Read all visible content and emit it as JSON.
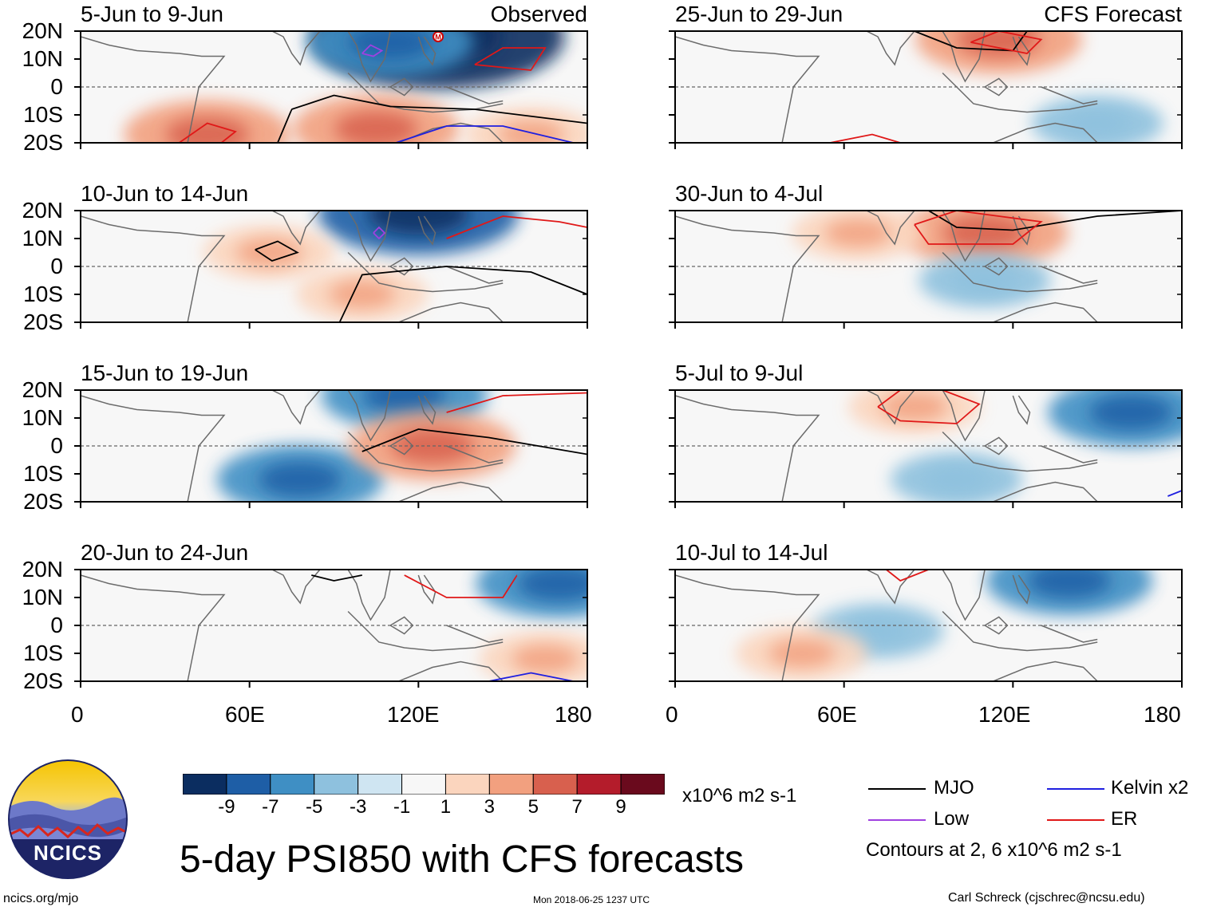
{
  "title": "5-day PSI850 with CFS forecasts",
  "colors": {
    "MJO": "#000000",
    "Kelvin": "#1f1fe0",
    "Low": "#a040e0",
    "ER": "#e01818",
    "palette": [
      "#0b2d60",
      "#1e5ea6",
      "#3f8fc4",
      "#8ec1de",
      "#cfe5f2",
      "#f7f7f7",
      "#fbd5be",
      "#f2a07f",
      "#d8604e",
      "#b41c2b",
      "#6a0a1d"
    ]
  },
  "chart_data": [
    {
      "type": "heatmap",
      "panel": "Observed",
      "period": "5-Jun to 9-Jun",
      "label": "Observed",
      "x_range": [
        0,
        180
      ],
      "y_range": [
        -20,
        20
      ],
      "features": [
        {
          "kind": "blob",
          "sign": "neg",
          "lon": 127,
          "lat": 18,
          "value": -10
        },
        {
          "kind": "blob",
          "sign": "neg",
          "lon": 110,
          "lat": 16,
          "value": -5
        },
        {
          "kind": "blob",
          "sign": "pos",
          "lon": 105,
          "lat": -15,
          "value": 5
        },
        {
          "kind": "blob",
          "sign": "pos",
          "lon": 45,
          "lat": -17,
          "value": 5
        },
        {
          "kind": "blob",
          "sign": "pos",
          "lon": 160,
          "lat": -17,
          "value": 3
        }
      ],
      "contours": [
        {
          "wave": "MJO",
          "lon": [
            70,
            75,
            90,
            110,
            140,
            180
          ],
          "lat": [
            -20,
            -8,
            -3,
            -7,
            -8,
            -13
          ]
        },
        {
          "wave": "ER",
          "lon": [
            140,
            150,
            165,
            160,
            140
          ],
          "lat": [
            8,
            14,
            14,
            6,
            8
          ]
        },
        {
          "wave": "Kelvin",
          "lon": [
            112,
            130,
            150,
            175
          ],
          "lat": [
            -20,
            -14,
            -14,
            -20
          ]
        },
        {
          "wave": "Low",
          "lon": [
            100,
            103,
            107,
            104,
            100
          ],
          "lat": [
            12,
            15,
            13,
            11,
            12
          ]
        },
        {
          "wave": "ER",
          "lon": [
            35,
            45,
            55,
            50,
            35
          ],
          "lat": [
            -20,
            -13,
            -16,
            -20,
            -20
          ]
        }
      ],
      "marker": {
        "label": "M",
        "lon": 127,
        "lat": 18
      }
    },
    {
      "type": "heatmap",
      "panel": "Observed",
      "period": "10-Jun to 14-Jun",
      "x_range": [
        0,
        180
      ],
      "y_range": [
        -20,
        20
      ],
      "features": [
        {
          "kind": "blob",
          "sign": "neg",
          "lon": 120,
          "lat": 19,
          "value": -7
        },
        {
          "kind": "blob",
          "sign": "pos",
          "lon": 67,
          "lat": 5,
          "value": 3
        },
        {
          "kind": "blob",
          "sign": "pos",
          "lon": 100,
          "lat": -10,
          "value": 3
        }
      ],
      "contours": [
        {
          "wave": "MJO",
          "lon": [
            62,
            70,
            77,
            68,
            62
          ],
          "lat": [
            6,
            9,
            5,
            2,
            6
          ]
        },
        {
          "wave": "MJO",
          "lon": [
            92,
            100,
            130,
            160,
            180
          ],
          "lat": [
            -20,
            -3,
            0,
            -2,
            -10
          ]
        },
        {
          "wave": "ER",
          "lon": [
            130,
            150,
            170,
            180
          ],
          "lat": [
            10,
            18,
            16,
            14
          ]
        },
        {
          "wave": "Low",
          "lon": [
            104,
            106,
            108,
            106,
            104
          ],
          "lat": [
            12,
            14,
            12,
            10,
            12
          ]
        }
      ]
    },
    {
      "type": "heatmap",
      "panel": "Observed",
      "period": "15-Jun to 19-Jun",
      "x_range": [
        0,
        180
      ],
      "y_range": [
        -20,
        20
      ],
      "features": [
        {
          "kind": "blob",
          "sign": "neg",
          "lon": 115,
          "lat": 18,
          "value": -5
        },
        {
          "kind": "blob",
          "sign": "neg",
          "lon": 78,
          "lat": -12,
          "value": -5
        },
        {
          "kind": "blob",
          "sign": "pos",
          "lon": 125,
          "lat": 0,
          "value": 5
        }
      ],
      "contours": [
        {
          "wave": "MJO",
          "lon": [
            100,
            120,
            145,
            180
          ],
          "lat": [
            -2,
            6,
            3,
            -3
          ]
        },
        {
          "wave": "ER",
          "lon": [
            130,
            150,
            180
          ],
          "lat": [
            12,
            18,
            19
          ]
        }
      ]
    },
    {
      "type": "heatmap",
      "panel": "Observed",
      "period": "20-Jun to 24-Jun",
      "x_range": [
        0,
        180
      ],
      "y_range": [
        -20,
        20
      ],
      "features": [
        {
          "kind": "blob",
          "sign": "neg",
          "lon": 170,
          "lat": 15,
          "value": -5
        },
        {
          "kind": "blob",
          "sign": "pos",
          "lon": 165,
          "lat": -12,
          "value": 3
        }
      ],
      "contours": [
        {
          "wave": "ER",
          "lon": [
            115,
            130,
            150,
            155
          ],
          "lat": [
            18,
            10,
            10,
            18
          ]
        },
        {
          "wave": "MJO",
          "lon": [
            82,
            90,
            100
          ],
          "lat": [
            18,
            16,
            18
          ]
        },
        {
          "wave": "Kelvin",
          "lon": [
            145,
            160,
            175
          ],
          "lat": [
            -20,
            -17,
            -20
          ]
        }
      ]
    },
    {
      "type": "heatmap",
      "panel": "CFS Forecast",
      "period": "25-Jun to 29-Jun",
      "label": "CFS Forecast",
      "x_range": [
        0,
        180
      ],
      "y_range": [
        -20,
        20
      ],
      "features": [
        {
          "kind": "blob",
          "sign": "pos",
          "lon": 115,
          "lat": 17,
          "value": 5
        },
        {
          "kind": "blob",
          "sign": "neg",
          "lon": 150,
          "lat": -13,
          "value": -3
        }
      ],
      "contours": [
        {
          "wave": "MJO",
          "lon": [
            85,
            100,
            120,
            125
          ],
          "lat": [
            20,
            14,
            13,
            20
          ]
        },
        {
          "wave": "ER",
          "lon": [
            105,
            115,
            130,
            125,
            105
          ],
          "lat": [
            16,
            20,
            17,
            12,
            16
          ]
        },
        {
          "wave": "ER",
          "lon": [
            55,
            70,
            80
          ],
          "lat": [
            -20,
            -17,
            -20
          ]
        }
      ]
    },
    {
      "type": "heatmap",
      "panel": "CFS Forecast",
      "period": "30-Jun to 4-Jul",
      "x_range": [
        0,
        180
      ],
      "y_range": [
        -20,
        20
      ],
      "features": [
        {
          "kind": "blob",
          "sign": "pos",
          "lon": 110,
          "lat": 12,
          "value": 5
        },
        {
          "kind": "blob",
          "sign": "pos",
          "lon": 65,
          "lat": 12,
          "value": 3
        },
        {
          "kind": "blob",
          "sign": "neg",
          "lon": 110,
          "lat": -5,
          "value": -3
        }
      ],
      "contours": [
        {
          "wave": "MJO",
          "lon": [
            90,
            100,
            120,
            150,
            180
          ],
          "lat": [
            20,
            14,
            13,
            18,
            20
          ]
        },
        {
          "wave": "ER",
          "lon": [
            85,
            100,
            130,
            120,
            90,
            85
          ],
          "lat": [
            15,
            20,
            16,
            8,
            8,
            15
          ]
        }
      ]
    },
    {
      "type": "heatmap",
      "panel": "CFS Forecast",
      "period": "5-Jul to 9-Jul",
      "x_range": [
        0,
        180
      ],
      "y_range": [
        -20,
        20
      ],
      "features": [
        {
          "kind": "blob",
          "sign": "neg",
          "lon": 162,
          "lat": 12,
          "value": -5
        },
        {
          "kind": "blob",
          "sign": "pos",
          "lon": 85,
          "lat": 14,
          "value": 3
        },
        {
          "kind": "blob",
          "sign": "neg",
          "lon": 100,
          "lat": -12,
          "value": -3
        }
      ],
      "contours": [
        {
          "wave": "ER",
          "lon": [
            72,
            80,
            95,
            108,
            100,
            80,
            72
          ],
          "lat": [
            14,
            20,
            20,
            15,
            8,
            9,
            14
          ]
        },
        {
          "wave": "Kelvin",
          "lon": [
            175,
            180
          ],
          "lat": [
            -18,
            -16
          ]
        }
      ]
    },
    {
      "type": "heatmap",
      "panel": "CFS Forecast",
      "period": "10-Jul to 14-Jul",
      "x_range": [
        0,
        180
      ],
      "y_range": [
        -20,
        20
      ],
      "features": [
        {
          "kind": "blob",
          "sign": "neg",
          "lon": 140,
          "lat": 16,
          "value": -5
        },
        {
          "kind": "blob",
          "sign": "neg",
          "lon": 72,
          "lat": -2,
          "value": -3
        },
        {
          "kind": "blob",
          "sign": "pos",
          "lon": 45,
          "lat": -10,
          "value": 3
        }
      ],
      "contours": [
        {
          "wave": "ER",
          "lon": [
            75,
            80,
            90
          ],
          "lat": [
            20,
            16,
            20
          ]
        }
      ]
    }
  ],
  "axes": {
    "y_ticks": [
      "20N",
      "10N",
      "0",
      "10S",
      "20S"
    ],
    "y_values": [
      20,
      10,
      0,
      -10,
      -20
    ],
    "x_ticks": [
      "0",
      "60E",
      "120E",
      "180"
    ],
    "x_values": [
      0,
      60,
      120,
      180
    ]
  },
  "colorbar": {
    "ticks": [
      "-9",
      "-7",
      "-5",
      "-3",
      "-1",
      "1",
      "3",
      "5",
      "7",
      "9"
    ],
    "units": "x10^6 m2 s-1"
  },
  "legend": {
    "items": [
      {
        "label": "MJO",
        "color_key": "MJO"
      },
      {
        "label": "Kelvin x2",
        "color_key": "Kelvin"
      },
      {
        "label": "Low",
        "color_key": "Low"
      },
      {
        "label": "ER",
        "color_key": "ER"
      }
    ],
    "note": "Contours at 2, 6 x10^6 m2 s-1"
  },
  "logo": {
    "text": "NCICS"
  },
  "footer": {
    "url": "ncics.org/mjo",
    "timestamp": "Mon 2018-06-25 1237 UTC",
    "author": "Carl Schreck (cjschrec@ncsu.edu)"
  }
}
